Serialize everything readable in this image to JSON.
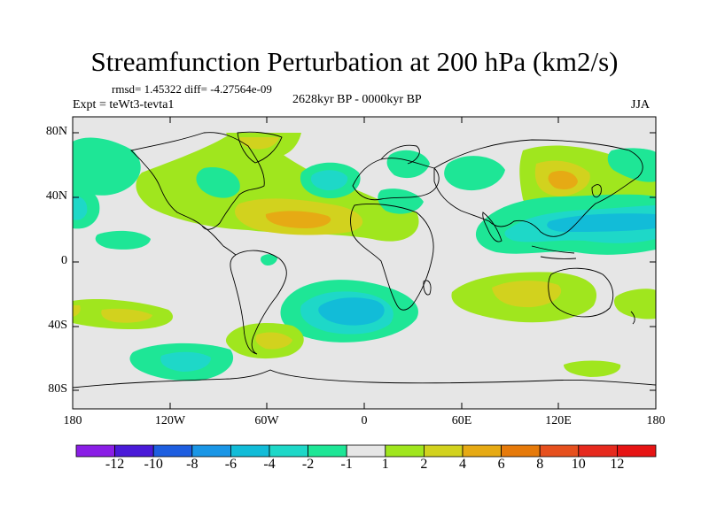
{
  "title": "Streamfunction Perturbation at 200 hPa (km2/s)",
  "stats_line": "rmsd= 1.45322 diff= -4.27564e-09",
  "left_label": "Expt = teWt3-tevta1",
  "center_label": "2628kyr BP - 0000kyr BP",
  "right_label": "JJA",
  "lat_labels": [
    "80N",
    "40N",
    "0",
    "40S",
    "80S"
  ],
  "lon_labels": [
    "180",
    "120W",
    "60W",
    "0",
    "60E",
    "120E",
    "180"
  ],
  "colorbar": {
    "labels": [
      "-12",
      "-10",
      "-8",
      "-6",
      "-4",
      "-2",
      "-1",
      "1",
      "2",
      "4",
      "6",
      "8",
      "10",
      "12"
    ],
    "colors": [
      "#8a1ee6",
      "#4a1ad8",
      "#1e5ee0",
      "#1a96e6",
      "#12bcd8",
      "#1ed8c8",
      "#1ee696",
      "#e6e6e6",
      "#a0e61e",
      "#d2d21e",
      "#e6aa14",
      "#e67a0a",
      "#e6501e",
      "#e62a1e",
      "#e61414"
    ]
  },
  "colors": {
    "background": "#e6e6e6",
    "coast": "#000000"
  }
}
